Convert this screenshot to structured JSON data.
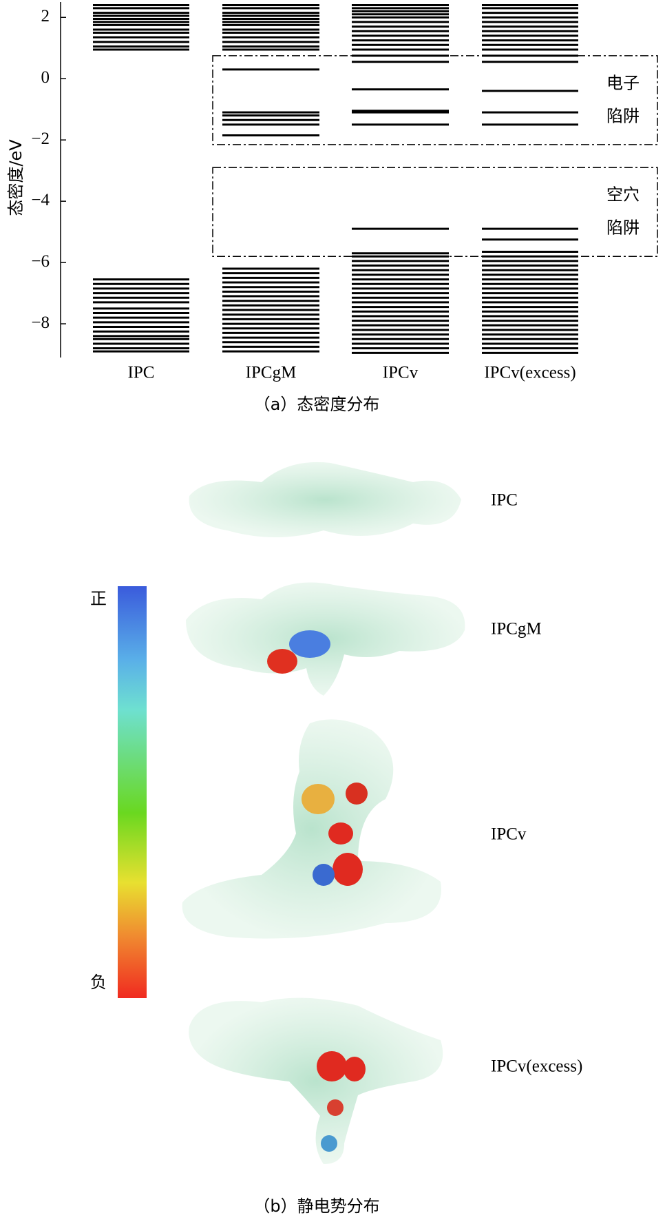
{
  "chart_data": {
    "type": "levels",
    "ylabel": "态密度/eV",
    "caption": "（a）态密度分布",
    "categories": [
      "IPC",
      "IPCgM",
      "IPCv",
      "IPCv(excess)"
    ],
    "levels": [
      [
        0.95,
        1.05,
        1.2,
        1.35,
        1.5,
        1.6,
        1.75,
        1.85,
        1.95,
        2.05,
        2.15,
        2.3,
        2.4,
        -6.55,
        -6.7,
        -6.85,
        -7.0,
        -7.15,
        -7.3,
        -7.5,
        -7.65,
        -7.8,
        -7.95,
        -8.1,
        -8.25,
        -8.4,
        -8.5,
        -8.65,
        -8.8,
        -8.9
      ],
      [
        0.95,
        1.05,
        1.2,
        1.35,
        1.5,
        1.6,
        1.75,
        1.85,
        1.95,
        2.05,
        2.15,
        2.3,
        2.4,
        0.3,
        -1.1,
        -1.2,
        -1.35,
        -1.5,
        -1.85,
        -6.2,
        -6.35,
        -6.5,
        -6.65,
        -6.8,
        -6.95,
        -7.1,
        -7.25,
        -7.4,
        -7.55,
        -7.7,
        -7.85,
        -8.0,
        -8.15,
        -8.3,
        -8.45,
        -8.6,
        -8.75,
        -8.9
      ],
      [
        0.55,
        0.75,
        0.95,
        1.1,
        1.25,
        1.4,
        1.55,
        1.7,
        1.85,
        2.0,
        2.1,
        2.2,
        2.3,
        2.4,
        -0.35,
        -1.05,
        -1.1,
        -1.5,
        -4.9,
        -5.7,
        -5.8,
        -5.95,
        -6.1,
        -6.25,
        -6.4,
        -6.55,
        -6.7,
        -6.85,
        -7.0,
        -7.15,
        -7.3,
        -7.45,
        -7.6,
        -7.75,
        -7.9,
        -8.05,
        -8.2,
        -8.35,
        -8.5,
        -8.65,
        -8.8,
        -8.95
      ],
      [
        0.55,
        0.75,
        0.95,
        1.1,
        1.25,
        1.4,
        1.55,
        1.7,
        1.85,
        2.0,
        2.15,
        2.3,
        2.4,
        -0.4,
        -1.1,
        -1.5,
        -4.9,
        -5.25,
        -5.65,
        -5.8,
        -5.95,
        -6.1,
        -6.25,
        -6.4,
        -6.55,
        -6.7,
        -6.85,
        -7.0,
        -7.15,
        -7.3,
        -7.45,
        -7.6,
        -7.75,
        -7.9,
        -8.05,
        -8.2,
        -8.35,
        -8.5,
        -8.65,
        -8.8,
        -8.95
      ]
    ],
    "color": "#000000",
    "ylim": [
      -9.1,
      2.5
    ],
    "yticks": [
      2,
      0,
      {
        "value": -2,
        "label": "−2"
      },
      {
        "value": -4,
        "label": "−4"
      },
      {
        "value": -6,
        "label": "−6"
      },
      {
        "value": -8,
        "label": "−8"
      }
    ],
    "annotations": [
      {
        "lines": [
          "电子",
          "陷阱"
        ],
        "range": [
          0.75,
          -2.15
        ]
      },
      {
        "lines": [
          "空穴",
          "陷阱"
        ],
        "range": [
          -2.9,
          -5.8
        ]
      }
    ]
  },
  "figure_b": {
    "labels": [
      "IPC",
      "IPCgM",
      "IPCv",
      "IPCv(excess)"
    ],
    "colorbar": {
      "top": "正",
      "bottom": "负"
    },
    "caption": "（b）静电势分布"
  }
}
